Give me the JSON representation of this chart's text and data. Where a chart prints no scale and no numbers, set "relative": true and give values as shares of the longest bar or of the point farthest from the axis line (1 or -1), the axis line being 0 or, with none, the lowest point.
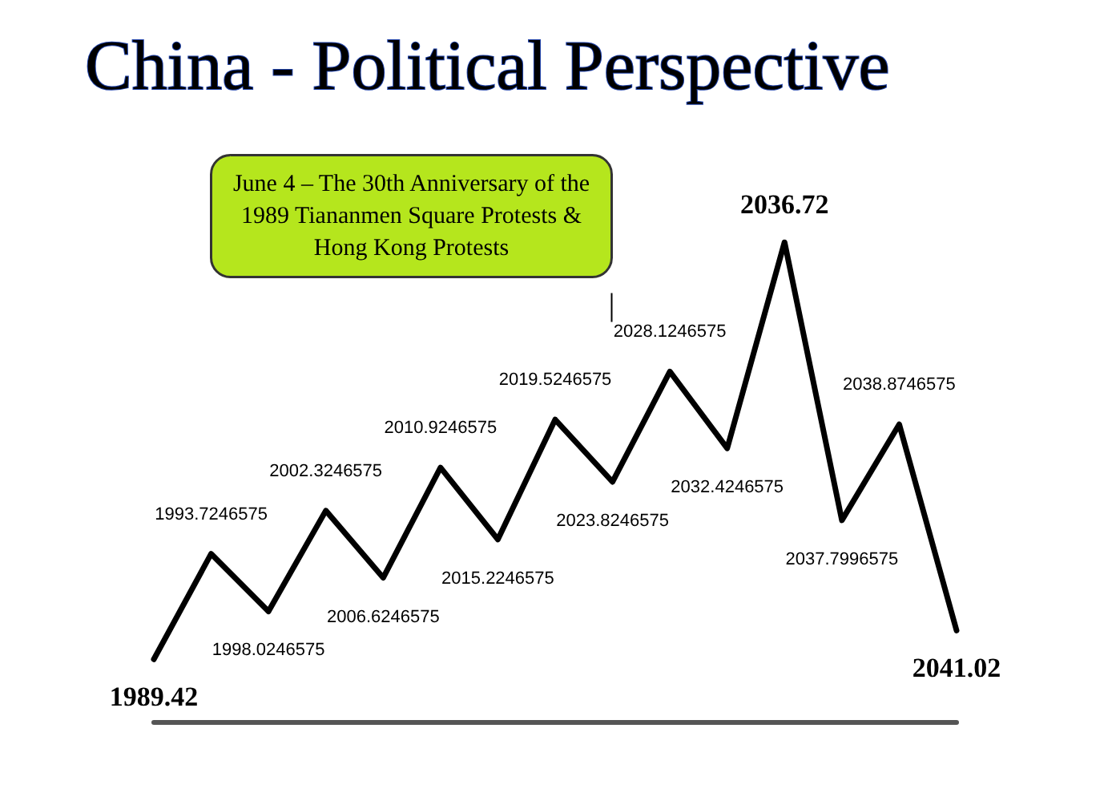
{
  "chart_data": {
    "type": "line",
    "title": "China - Political Perspective",
    "relative": true,
    "categories": [
      null,
      null,
      null,
      null,
      null,
      null,
      null,
      null,
      null,
      null,
      null,
      null,
      null,
      null,
      null
    ],
    "series": [
      {
        "color": "#000000",
        "values": [
          0.13,
          0.35,
          0.23,
          0.44,
          0.3,
          0.53,
          0.38,
          0.63,
          0.5,
          0.73,
          0.57,
          1,
          0.42,
          0.62,
          0.19
        ]
      }
    ],
    "annotations": [
      "June 4 – The 30th Anniversary of the\n1989 Tiananmen Square Protests &\nHong Kong Protests",
      "1989.42",
      "1993.7246575",
      "1998.0246575",
      "2002.3246575",
      "2006.6246575",
      "2010.9246575",
      "2015.2246575",
      "2019.5246575",
      "2023.8246575",
      "2028.1246575",
      "2032.4246575",
      "2036.72",
      "2037.7996575",
      "2038.8746575",
      "2041.02"
    ],
    "marker": "none",
    "line_style": "solid",
    "grid": false,
    "tick_labels": false
  }
}
